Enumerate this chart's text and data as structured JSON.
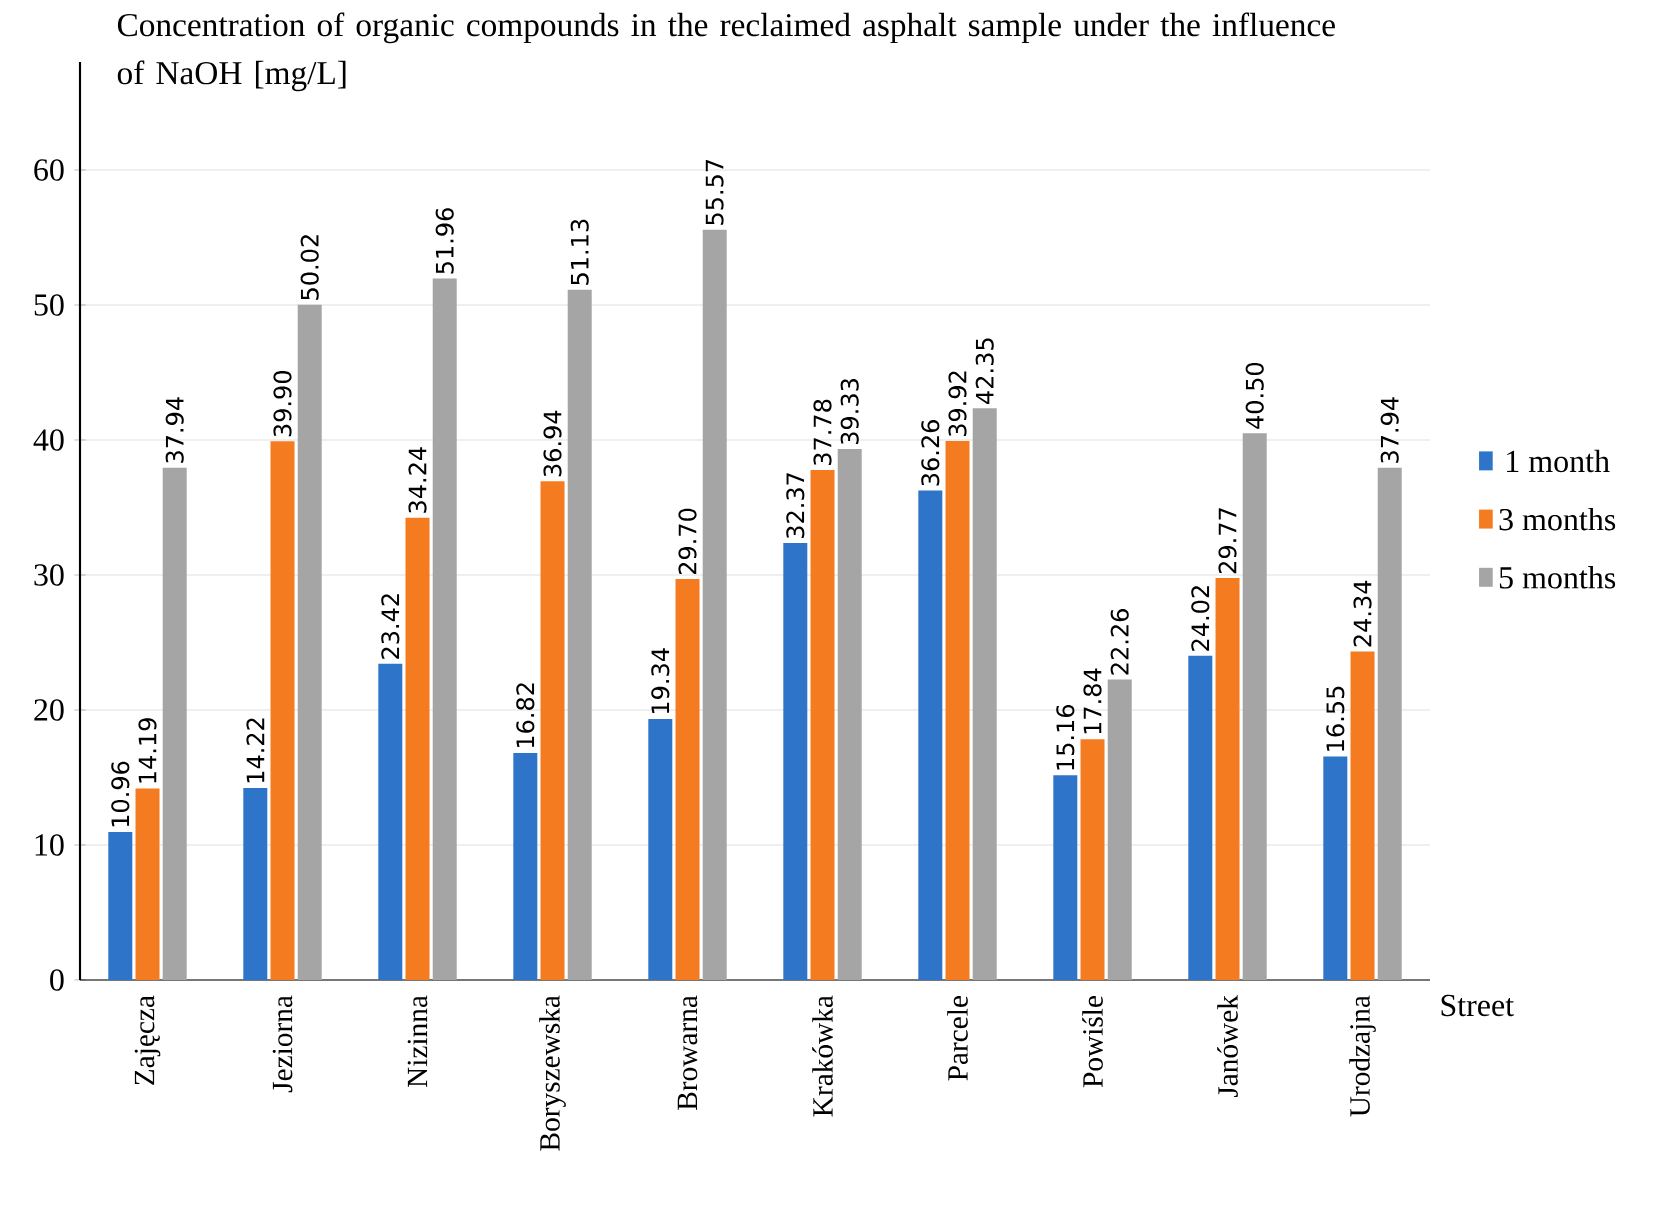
{
  "chart_data": {
    "type": "bar",
    "title": "Concentration of organic compounds in the reclaimed asphalt sample under the influence of NaOH [mg/L]",
    "xlabel": "Street",
    "categories": [
      "Zajęcza",
      "Jeziorna",
      "Nizinna",
      "Boryszewska",
      "Browarna",
      "Krakówka",
      "Parcele",
      "Powiśle",
      "Janówek",
      "Urodzajna"
    ],
    "series": [
      {
        "name": "1 month",
        "color": "#2e75c9",
        "values": [
          10.96,
          14.22,
          23.42,
          16.82,
          19.34,
          32.37,
          36.26,
          15.16,
          24.02,
          16.55
        ],
        "value_labels": [
          "10.96",
          "14.22",
          "23.42",
          "16.82",
          "19.34",
          "32.37",
          "36.26",
          "15.16",
          "24.02",
          "16.55"
        ]
      },
      {
        "name": "3 months",
        "color": "#f47b20",
        "values": [
          14.19,
          39.9,
          34.24,
          36.94,
          29.7,
          37.78,
          39.92,
          17.84,
          29.77,
          24.34
        ],
        "value_labels": [
          "14.19",
          "39.90",
          "34.24",
          "36.94",
          "29.70",
          "37.78",
          "39.92",
          "17.84",
          "29.77",
          "24.34"
        ]
      },
      {
        "name": "5 months",
        "color": "#a5a5a5",
        "values": [
          37.94,
          50.02,
          51.96,
          51.13,
          55.57,
          39.33,
          42.35,
          22.26,
          40.5,
          37.94
        ],
        "value_labels": [
          "37.94",
          "50.02",
          "51.96",
          "51.13",
          "55.57",
          "39.33",
          "42.35",
          "22.26",
          "40.50",
          "37.94"
        ]
      }
    ],
    "ylim": [
      0,
      68
    ],
    "yticks": [
      0,
      10,
      20,
      30,
      40,
      50,
      60
    ],
    "grid": "y",
    "legend": "right"
  }
}
